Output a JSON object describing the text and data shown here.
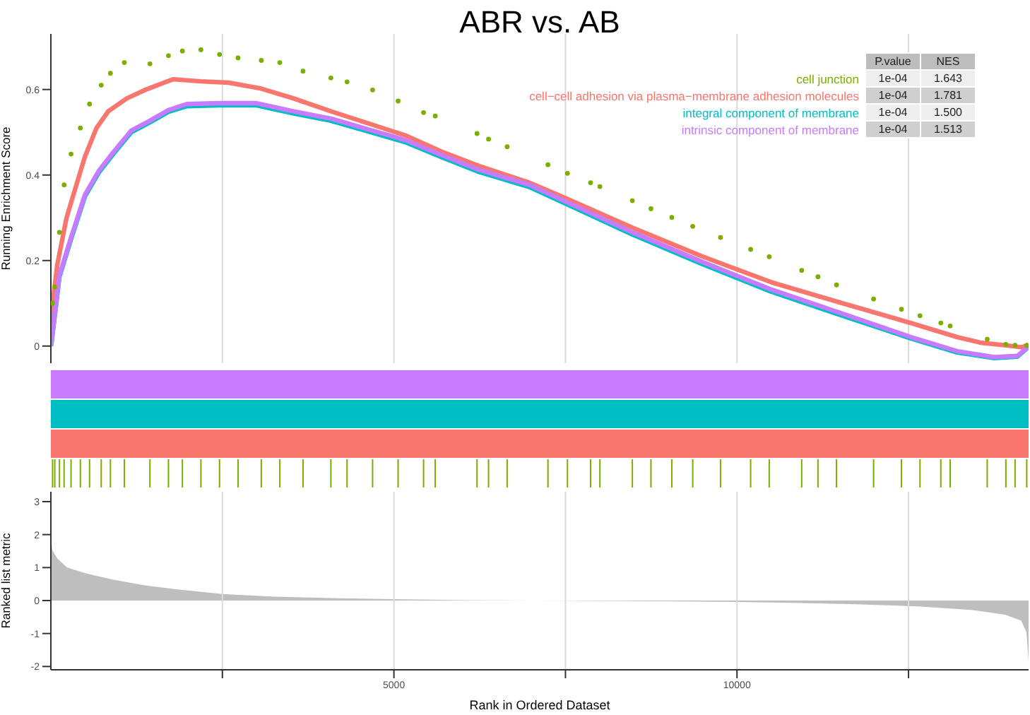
{
  "chart_data": [
    {
      "type": "line",
      "title": "ABR vs. AB",
      "ylabel": "Running Enrichment Score",
      "xlim": [
        0,
        14250
      ],
      "xticks": [
        {
          "value": 2500,
          "label": null
        },
        {
          "value": 5000,
          "label": null
        },
        {
          "value": 7500,
          "label": null
        },
        {
          "value": 10000,
          "label": null
        },
        {
          "value": 12500,
          "label": null
        }
      ],
      "ylim": [
        -0.04,
        0.73
      ],
      "yticks": [
        0,
        0.2,
        0.4,
        0.6
      ],
      "grid": "x",
      "tick_labels": "y",
      "legend": "top right",
      "annotations": [
        "P.value",
        "NES",
        "1e-04",
        "1.643",
        "1e-04",
        "1.781",
        "1e-04",
        "1.500",
        "1e-04",
        "1.513"
      ],
      "series": [
        {
          "name": "cell junction",
          "type": "scatter",
          "marker": "circle",
          "color": "#7cae00",
          "x": [
            25,
            57,
            125,
            193,
            294,
            430,
            564,
            734,
            868,
            1071,
            1444,
            1714,
            1917,
            2187,
            2458,
            2728,
            3067,
            3337,
            3675,
            4081,
            4317,
            4689,
            5061,
            5432,
            5602,
            6211,
            6379,
            6650,
            7245,
            7529,
            7866,
            8002,
            8475,
            8746,
            9050,
            9355,
            9760,
            10199,
            10470,
            10943,
            11180,
            11450,
            11991,
            12397,
            12667,
            12971,
            13107,
            13647,
            13919,
            14053,
            14223
          ],
          "values": [
            0.1,
            0.138,
            0.266,
            0.377,
            0.449,
            0.51,
            0.566,
            0.61,
            0.638,
            0.663,
            0.66,
            0.679,
            0.69,
            0.693,
            0.682,
            0.674,
            0.668,
            0.663,
            0.643,
            0.627,
            0.618,
            0.599,
            0.573,
            0.546,
            0.538,
            0.497,
            0.484,
            0.466,
            0.424,
            0.404,
            0.382,
            0.373,
            0.34,
            0.321,
            0.301,
            0.28,
            0.254,
            0.226,
            0.209,
            0.177,
            0.162,
            0.143,
            0.11,
            0.086,
            0.071,
            0.054,
            0.047,
            0.016,
            0.004,
            0.002,
            0.001
          ]
        },
        {
          "name": "cell−cell adhesion via plasma−membrane adhesion molecules",
          "color": "#f8766d",
          "x": [
            0,
            10,
            91,
            227,
            329,
            497,
            665,
            836,
            1105,
            1375,
            1647,
            1781,
            2187,
            2592,
            3067,
            3540,
            4081,
            4621,
            5162,
            5704,
            6243,
            6974,
            7461,
            8475,
            9489,
            10503,
            11517,
            12532,
            13209,
            13546,
            13951,
            14154,
            14250
          ],
          "values": [
            0,
            0.077,
            0.188,
            0.299,
            0.354,
            0.443,
            0.51,
            0.549,
            0.579,
            0.599,
            0.616,
            0.624,
            0.619,
            0.616,
            0.602,
            0.579,
            0.549,
            0.521,
            0.493,
            0.454,
            0.421,
            0.382,
            0.349,
            0.277,
            0.21,
            0.149,
            0.101,
            0.054,
            0.021,
            0.008,
            0.001,
            -0.003,
            0.004
          ]
        },
        {
          "name": "integral component of membrane",
          "color": "#00bfc4",
          "x": [
            0,
            10,
            125,
            294,
            497,
            700,
            903,
            1172,
            1444,
            1714,
            1984,
            2458,
            2998,
            3540,
            4081,
            4621,
            5162,
            5704,
            6243,
            6974,
            7461,
            8475,
            9489,
            10503,
            11517,
            12532,
            13209,
            13749,
            14087,
            14250
          ],
          "values": [
            0,
            0.008,
            0.162,
            0.25,
            0.35,
            0.406,
            0.448,
            0.5,
            0.523,
            0.548,
            0.561,
            0.563,
            0.563,
            0.544,
            0.527,
            0.502,
            0.477,
            0.441,
            0.407,
            0.372,
            0.336,
            0.261,
            0.192,
            0.127,
            0.072,
            0.018,
            -0.015,
            -0.028,
            -0.025,
            -0.002
          ]
        },
        {
          "name": "intrinsic component of membrane",
          "color": "#c77cff",
          "x": [
            0,
            10,
            125,
            294,
            497,
            700,
            903,
            1172,
            1444,
            1714,
            1984,
            2458,
            2998,
            3540,
            4081,
            4621,
            5162,
            5704,
            6243,
            6974,
            7461,
            8475,
            9489,
            10503,
            11517,
            12532,
            13209,
            13749,
            14087,
            14250
          ],
          "values": [
            0,
            0.01,
            0.166,
            0.254,
            0.354,
            0.41,
            0.452,
            0.504,
            0.527,
            0.552,
            0.566,
            0.568,
            0.568,
            0.549,
            0.532,
            0.507,
            0.482,
            0.446,
            0.412,
            0.377,
            0.341,
            0.266,
            0.197,
            0.132,
            0.077,
            0.021,
            -0.012,
            -0.026,
            -0.023,
            -0.001
          ]
        }
      ]
    },
    {
      "type": "area",
      "xlabel": "Rank in Ordered Dataset",
      "ylabel": "Ranked list metric",
      "xlim": [
        0,
        14250
      ],
      "xticks": [
        {
          "value": 2500,
          "label": null
        },
        5000,
        {
          "value": 7500,
          "label": null
        },
        10000,
        {
          "value": 12500,
          "label": null
        }
      ],
      "ylim": [
        -2.1,
        3.3
      ],
      "yticks": [
        -2,
        -1,
        0,
        1,
        2,
        3
      ],
      "grid": "x",
      "series": [
        {
          "color": "#bebebe",
          "x": [
            0,
            20,
            96,
            237,
            520,
            897,
            1369,
            1840,
            2500,
            3254,
            4197,
            5140,
            6083,
            7025,
            7968,
            8911,
            9854,
            10797,
            11740,
            12682,
            13437,
            13908,
            14143,
            14219,
            14250
          ],
          "values": [
            1.98,
            1.53,
            1.27,
            1.0,
            0.82,
            0.64,
            0.46,
            0.34,
            0.2,
            0.12,
            0.07,
            0.04,
            0.01,
            0,
            -0.01,
            -0.02,
            -0.04,
            -0.07,
            -0.11,
            -0.18,
            -0.29,
            -0.43,
            -0.61,
            -0.96,
            -1.85
          ]
        }
      ]
    }
  ]
}
